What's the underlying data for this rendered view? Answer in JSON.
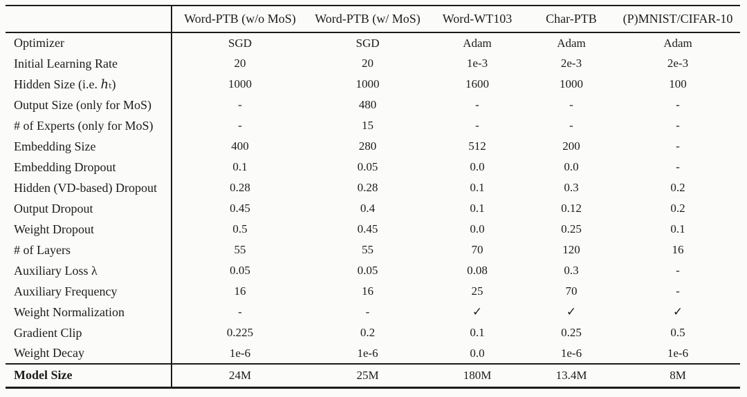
{
  "page": {
    "background": "#fbfbfa",
    "text_color": "#1b1b1b",
    "rule_color": "#1a1a1a"
  },
  "table": {
    "corner_label": "",
    "checkmark_symbol": "✓",
    "columns": [
      "Word-PTB (w/o MoS)",
      "Word-PTB (w/ MoS)",
      "Word-WT103",
      "Char-PTB",
      "(P)MNIST/CIFAR-10"
    ],
    "rows": [
      {
        "label": "Optimizer",
        "bold": false,
        "values": [
          "SGD",
          "SGD",
          "Adam",
          "Adam",
          "Adam"
        ]
      },
      {
        "label": "Initial Learning Rate",
        "bold": false,
        "values": [
          "20",
          "20",
          "1e-3",
          "2e-3",
          "2e-3"
        ]
      },
      {
        "label": "Hidden Size (i.e. ℎₜ)",
        "bold": false,
        "values": [
          "1000",
          "1000",
          "1600",
          "1000",
          "100"
        ]
      },
      {
        "label": "Output Size (only for MoS)",
        "bold": false,
        "values": [
          "-",
          "480",
          "-",
          "-",
          "-"
        ]
      },
      {
        "label": "# of Experts (only for MoS)",
        "bold": false,
        "values": [
          "-",
          "15",
          "-",
          "-",
          "-"
        ]
      },
      {
        "label": "Embedding Size",
        "bold": false,
        "values": [
          "400",
          "280",
          "512",
          "200",
          "-"
        ]
      },
      {
        "label": "Embedding Dropout",
        "bold": false,
        "values": [
          "0.1",
          "0.05",
          "0.0",
          "0.0",
          "-"
        ]
      },
      {
        "label": "Hidden (VD-based) Dropout",
        "bold": false,
        "values": [
          "0.28",
          "0.28",
          "0.1",
          "0.3",
          "0.2"
        ]
      },
      {
        "label": "Output Dropout",
        "bold": false,
        "values": [
          "0.45",
          "0.4",
          "0.1",
          "0.12",
          "0.2"
        ]
      },
      {
        "label": "Weight Dropout",
        "bold": false,
        "values": [
          "0.5",
          "0.45",
          "0.0",
          "0.25",
          "0.1"
        ]
      },
      {
        "label": "# of Layers",
        "bold": false,
        "values": [
          "55",
          "55",
          "70",
          "120",
          "16"
        ]
      },
      {
        "label": "Auxiliary Loss λ",
        "bold": false,
        "values": [
          "0.05",
          "0.05",
          "0.08",
          "0.3",
          "-"
        ]
      },
      {
        "label": "Auxiliary Frequency",
        "bold": false,
        "values": [
          "16",
          "16",
          "25",
          "70",
          "-"
        ]
      },
      {
        "label": "Weight Normalization",
        "bold": false,
        "values": [
          "-",
          "-",
          "✓",
          "✓",
          "✓"
        ]
      },
      {
        "label": "Gradient Clip",
        "bold": false,
        "values": [
          "0.225",
          "0.2",
          "0.1",
          "0.25",
          "0.5"
        ]
      },
      {
        "label": "Weight Decay",
        "bold": false,
        "values": [
          "1e-6",
          "1e-6",
          "0.0",
          "1e-6",
          "1e-6"
        ]
      },
      {
        "label": "Model Size",
        "bold": true,
        "values": [
          "24M",
          "25M",
          "180M",
          "13.4M",
          "8M"
        ]
      }
    ]
  }
}
